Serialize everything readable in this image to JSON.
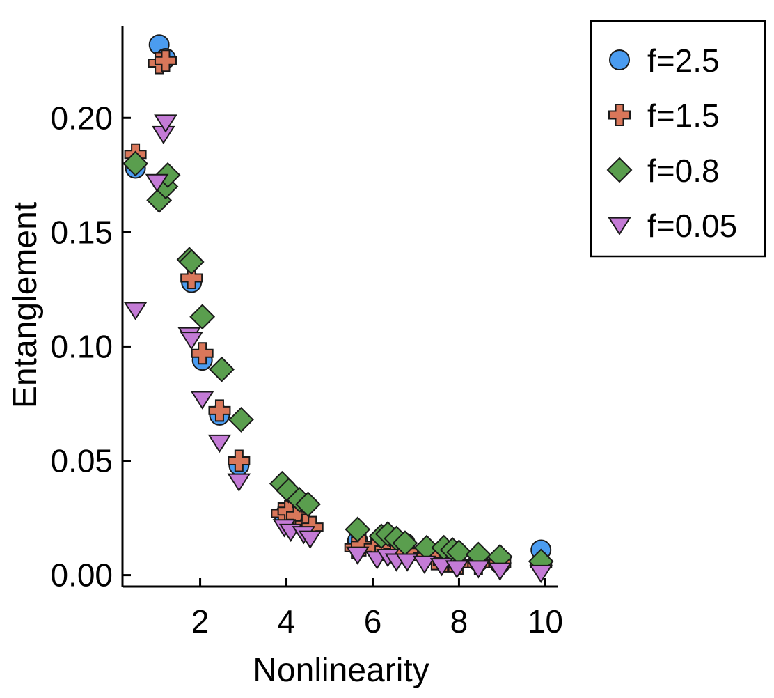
{
  "chart_data": {
    "type": "scatter",
    "title": "",
    "xlabel": "Nonlinearity",
    "ylabel": "Entanglement",
    "xlim": [
      0.2,
      10.3
    ],
    "ylim": [
      -0.005,
      0.24
    ],
    "xticks": [
      2,
      4,
      6,
      8,
      10
    ],
    "xtick_labels": [
      "2",
      "4",
      "6",
      "8",
      "10"
    ],
    "yticks": [
      0.0,
      0.05,
      0.1,
      0.15,
      0.2
    ],
    "ytick_labels": [
      "0.00",
      "0.05",
      "0.10",
      "0.15",
      "0.20"
    ],
    "grid": false,
    "legend_position": "outside-top-right",
    "series": [
      {
        "name": "f=2.5",
        "label": "f=2.5",
        "marker": "circle",
        "color": "#4b9cf0",
        "x": [
          0.5,
          1.05,
          1.2,
          1.8,
          2.05,
          2.45,
          2.9,
          3.95,
          4.1,
          4.4,
          5.65,
          6.25,
          6.5,
          6.75,
          7.3,
          7.65,
          7.9,
          8.45,
          8.95,
          9.9
        ],
        "y": [
          0.178,
          0.232,
          0.226,
          0.128,
          0.094,
          0.07,
          0.048,
          0.026,
          0.025,
          0.022,
          0.015,
          0.017,
          0.016,
          0.014,
          0.009,
          0.008,
          0.007,
          0.006,
          0.005,
          0.011
        ]
      },
      {
        "name": "f=1.5",
        "label": "f=1.5",
        "marker": "plus",
        "color": "#d9775a",
        "x": [
          0.5,
          1.05,
          1.2,
          1.8,
          2.05,
          2.45,
          2.9,
          3.9,
          4.05,
          4.25,
          4.45,
          4.6,
          5.6,
          5.75,
          6.05,
          6.3,
          6.5,
          6.8,
          7.2,
          7.45,
          7.65,
          7.85,
          8.0,
          8.45,
          8.95,
          9.9
        ],
        "y": [
          0.184,
          0.224,
          0.225,
          0.13,
          0.097,
          0.072,
          0.05,
          0.027,
          0.028,
          0.026,
          0.022,
          0.021,
          0.012,
          0.013,
          0.012,
          0.011,
          0.01,
          0.01,
          0.008,
          0.007,
          0.006,
          0.006,
          0.005,
          0.005,
          0.005,
          0.005
        ]
      },
      {
        "name": "f=0.8",
        "label": "f=0.8",
        "marker": "diamond",
        "color": "#5a9e4e",
        "x": [
          0.5,
          1.05,
          1.2,
          1.25,
          1.75,
          1.8,
          2.05,
          2.5,
          2.95,
          3.9,
          4.05,
          4.3,
          4.5,
          5.65,
          6.2,
          6.35,
          6.55,
          6.75,
          7.25,
          7.65,
          7.85,
          8.0,
          8.45,
          8.95,
          9.9
        ],
        "y": [
          0.18,
          0.164,
          0.17,
          0.175,
          0.138,
          0.137,
          0.113,
          0.09,
          0.068,
          0.04,
          0.037,
          0.033,
          0.031,
          0.02,
          0.017,
          0.018,
          0.016,
          0.014,
          0.012,
          0.012,
          0.011,
          0.01,
          0.009,
          0.008,
          0.006
        ]
      },
      {
        "name": "f=0.05",
        "label": "f=0.05",
        "marker": "triangle-down",
        "color": "#c47bd6",
        "x": [
          0.5,
          1.0,
          1.15,
          1.2,
          1.75,
          1.8,
          2.05,
          2.45,
          2.9,
          3.95,
          4.1,
          4.4,
          4.55,
          5.65,
          6.1,
          6.35,
          6.55,
          6.8,
          7.2,
          7.6,
          7.95,
          8.45,
          8.95,
          9.9
        ],
        "y": [
          0.116,
          0.172,
          0.193,
          0.198,
          0.105,
          0.103,
          0.077,
          0.058,
          0.041,
          0.021,
          0.019,
          0.018,
          0.016,
          0.009,
          0.007,
          0.008,
          0.006,
          0.006,
          0.005,
          0.004,
          0.003,
          0.003,
          0.002,
          0.001
        ]
      }
    ]
  }
}
